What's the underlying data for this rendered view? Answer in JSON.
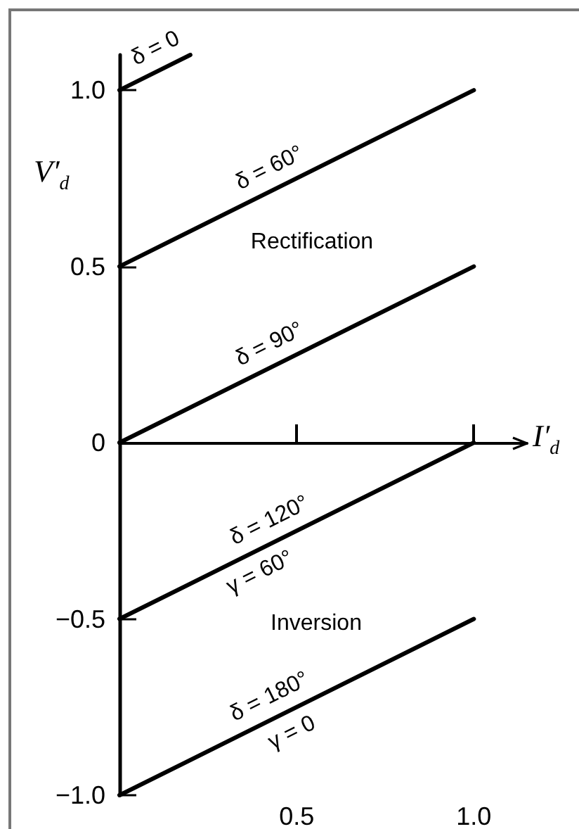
{
  "chart_data": {
    "type": "line",
    "xlabel": "I′$_{d}$",
    "ylabel": "V′$_{d}$",
    "series": [
      {
        "name": "δ = 0",
        "color": "#000000",
        "x": [
          0,
          0.2
        ],
        "values": [
          1.0,
          1.1
        ]
      },
      {
        "name": "δ = 60°",
        "color": "#000000",
        "x": [
          0,
          1.0
        ],
        "values": [
          0.5,
          1.0
        ]
      },
      {
        "name": "δ = 90°",
        "color": "#000000",
        "x": [
          0,
          1.0
        ],
        "values": [
          0,
          0.5
        ]
      },
      {
        "name": "δ = 120°",
        "color": "#000000",
        "x": [
          0,
          1.0
        ],
        "values": [
          -0.5,
          0
        ]
      },
      {
        "name": "δ = 180°",
        "color": "#000000",
        "x": [
          0,
          1.0
        ],
        "values": [
          -1.0,
          -0.5
        ]
      }
    ],
    "xlim": [
      0,
      1.15
    ],
    "ylim": [
      -1.0,
      1.1
    ],
    "xticks": [
      0.5,
      {
        "value": 1,
        "label": "1.0"
      }
    ],
    "yticks": [
      {
        "value": -1,
        "label": "−1.0"
      },
      {
        "value": -0.5,
        "label": "−0.5"
      },
      0,
      0.5,
      {
        "value": 1,
        "label": "1.0"
      }
    ],
    "annotations": [
      "Rectification",
      {
        "text": "γ = 60°",
        "x": 0.37,
        "y": -0.315
      },
      "Inversion",
      {
        "text": "γ = 0",
        "x": 0.46,
        "y": -0.77
      }
    ],
    "marker": "none",
    "line_style": "solid"
  }
}
